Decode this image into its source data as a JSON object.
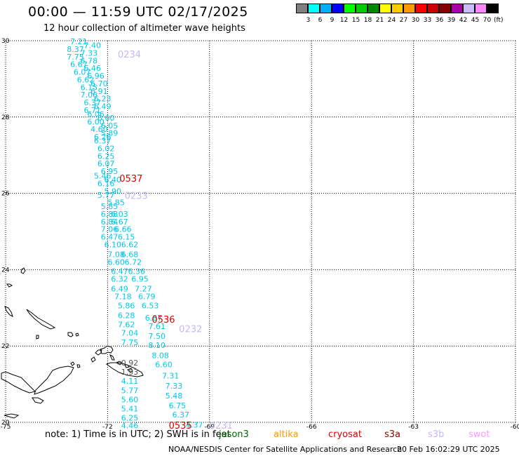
{
  "header": {
    "title": "00:00 — 11:59 UTC 02/17/2025",
    "subtitle": "12 hour collection of altimeter wave heights"
  },
  "legend": {
    "colors": [
      "#808080",
      "#00ffff",
      "#00b0ff",
      "#0000ff",
      "#00ff00",
      "#00cc00",
      "#008800",
      "#ffff00",
      "#ffcc00",
      "#ff9900",
      "#ff0000",
      "#cc0000",
      "#880000",
      "#aa00aa",
      "#ccbbff",
      "#ff88ff",
      "#000000"
    ],
    "labels": [
      "3",
      "6",
      "9",
      "12",
      "15",
      "18",
      "21",
      "24",
      "27",
      "30",
      "33",
      "36",
      "39",
      "42",
      "45",
      "70"
    ],
    "unit": "(ft)"
  },
  "axes": {
    "lon_labels": [
      "-75",
      "-72",
      "-69",
      "-66",
      "-63",
      "-60"
    ],
    "lat_labels": [
      "30",
      "28",
      "26",
      "24",
      "22",
      "20"
    ]
  },
  "pass_labels": [
    {
      "text": "0234",
      "lon": -71.7,
      "lat": 29.65,
      "color": "#c8b8f0"
    },
    {
      "text": "0537",
      "lon": -71.65,
      "lat": 26.4,
      "color": "#dd0000"
    },
    {
      "text": "0233",
      "lon": -71.5,
      "lat": 25.95,
      "color": "#c8b8f0"
    },
    {
      "text": "0536",
      "lon": -70.7,
      "lat": 22.7,
      "color": "#dd0000"
    },
    {
      "text": "0232",
      "lon": -69.9,
      "lat": 22.45,
      "color": "#c8b8f0"
    },
    {
      "text": "0535",
      "lon": -70.2,
      "lat": 19.93,
      "color": "#dd0000"
    },
    {
      "text": "0231",
      "lon": -69.0,
      "lat": 19.93,
      "color": "#c8b8f0"
    }
  ],
  "wave_heights": [
    {
      "v": "7.21",
      "lon": -73.1,
      "lat": 29.98,
      "c": "#00c8e8"
    },
    {
      "v": "7.40",
      "lon": -72.7,
      "lat": 29.88,
      "c": "#00c8e8"
    },
    {
      "v": "8.37",
      "lon": -73.2,
      "lat": 29.78,
      "c": "#00c8e8"
    },
    {
      "v": "7.33",
      "lon": -72.8,
      "lat": 29.68,
      "c": "#00c8e8"
    },
    {
      "v": "7.75",
      "lon": -73.2,
      "lat": 29.58,
      "c": "#00c8e8"
    },
    {
      "v": "6.78",
      "lon": -72.8,
      "lat": 29.48,
      "c": "#00c8e8"
    },
    {
      "v": "6.67",
      "lon": -73.1,
      "lat": 29.38,
      "c": "#00c8e8"
    },
    {
      "v": "6.46",
      "lon": -72.7,
      "lat": 29.28,
      "c": "#00c8e8"
    },
    {
      "v": "6.07",
      "lon": -73.0,
      "lat": 29.18,
      "c": "#00c8e8"
    },
    {
      "v": "6.96",
      "lon": -72.6,
      "lat": 29.08,
      "c": "#00c8e8"
    },
    {
      "v": "6.62",
      "lon": -72.9,
      "lat": 28.98,
      "c": "#00c8e8"
    },
    {
      "v": "6.70",
      "lon": -72.5,
      "lat": 28.88,
      "c": "#00c8e8"
    },
    {
      "v": "6.15",
      "lon": -72.8,
      "lat": 28.78,
      "c": "#00c8e8"
    },
    {
      "v": "6.91",
      "lon": -72.5,
      "lat": 28.68,
      "c": "#00c8e8"
    },
    {
      "v": "7.06",
      "lon": -72.8,
      "lat": 28.58,
      "c": "#00c8e8"
    },
    {
      "v": "6.23",
      "lon": -72.4,
      "lat": 28.48,
      "c": "#00c8e8"
    },
    {
      "v": "6.37",
      "lon": -72.7,
      "lat": 28.38,
      "c": "#00c8e8"
    },
    {
      "v": "6.49",
      "lon": -72.4,
      "lat": 28.28,
      "c": "#00c8e8"
    },
    {
      "v": "6.71",
      "lon": -72.7,
      "lat": 28.18,
      "c": "#00c8e8"
    },
    {
      "v": "6.06",
      "lon": -72.6,
      "lat": 28.08,
      "c": "#00c8e8"
    },
    {
      "v": "6.60",
      "lon": -72.3,
      "lat": 27.98,
      "c": "#00c8e8"
    },
    {
      "v": "6.00",
      "lon": -72.6,
      "lat": 27.88,
      "c": "#00c8e8"
    },
    {
      "v": "6.05",
      "lon": -72.2,
      "lat": 27.78,
      "c": "#00c8e8"
    },
    {
      "v": "4.60",
      "lon": -72.5,
      "lat": 27.68,
      "c": "#00c8e8"
    },
    {
      "v": "5.89",
      "lon": -72.2,
      "lat": 27.58,
      "c": "#00c8e8"
    },
    {
      "v": "6.26",
      "lon": -72.4,
      "lat": 27.48,
      "c": "#00c8e8"
    },
    {
      "v": "6.37",
      "lon": -72.4,
      "lat": 27.38,
      "c": "#00c8e8"
    },
    {
      "v": "6.02",
      "lon": -72.3,
      "lat": 27.18,
      "c": "#00c8e8"
    },
    {
      "v": "6.25",
      "lon": -72.3,
      "lat": 26.98,
      "c": "#00c8e8"
    },
    {
      "v": "6.07",
      "lon": -72.3,
      "lat": 26.78,
      "c": "#00c8e8"
    },
    {
      "v": "6.95",
      "lon": -72.2,
      "lat": 26.58,
      "c": "#00c8e8"
    },
    {
      "v": "5.46",
      "lon": -72.4,
      "lat": 26.46,
      "c": "#00c8e8"
    },
    {
      "v": "6.40",
      "lon": -72.1,
      "lat": 26.36,
      "c": "#00c8e8"
    },
    {
      "v": "6.16",
      "lon": -72.3,
      "lat": 26.26,
      "c": "#00c8e8"
    },
    {
      "v": "5.90",
      "lon": -72.1,
      "lat": 26.06,
      "c": "#00c8e8"
    },
    {
      "v": "5.77",
      "lon": -72.3,
      "lat": 25.96,
      "c": "#00c8e8"
    },
    {
      "v": "5.85",
      "lon": -72.0,
      "lat": 25.76,
      "c": "#00c8e8"
    },
    {
      "v": "5.85",
      "lon": -72.2,
      "lat": 25.66,
      "c": "#00c8e8"
    },
    {
      "v": "6.88",
      "lon": -72.2,
      "lat": 25.46,
      "c": "#00c8e8"
    },
    {
      "v": "6.03",
      "lon": -71.9,
      "lat": 25.46,
      "c": "#00c8e8"
    },
    {
      "v": "6.84",
      "lon": -72.2,
      "lat": 25.26,
      "c": "#00c8e8"
    },
    {
      "v": "6.67",
      "lon": -71.9,
      "lat": 25.26,
      "c": "#00c8e8"
    },
    {
      "v": "7.06",
      "lon": -72.2,
      "lat": 25.06,
      "c": "#00c8e8"
    },
    {
      "v": "6.66",
      "lon": -71.8,
      "lat": 25.06,
      "c": "#00c8e8"
    },
    {
      "v": "6.47",
      "lon": -72.2,
      "lat": 24.86,
      "c": "#00c8e8"
    },
    {
      "v": "6.15",
      "lon": -71.7,
      "lat": 24.86,
      "c": "#00c8e8"
    },
    {
      "v": "6.10",
      "lon": -72.1,
      "lat": 24.66,
      "c": "#00c8e8"
    },
    {
      "v": "6.62",
      "lon": -71.6,
      "lat": 24.66,
      "c": "#00c8e8"
    },
    {
      "v": "7.08",
      "lon": -72.0,
      "lat": 24.4,
      "c": "#00c8e8"
    },
    {
      "v": "6.68",
      "lon": -71.6,
      "lat": 24.4,
      "c": "#00c8e8"
    },
    {
      "v": "6.60",
      "lon": -72.0,
      "lat": 24.2,
      "c": "#00c8e8"
    },
    {
      "v": "6.72",
      "lon": -71.5,
      "lat": 24.2,
      "c": "#00c8e8"
    },
    {
      "v": "6.47",
      "lon": -71.9,
      "lat": 23.96,
      "c": "#00c8e8"
    },
    {
      "v": "6.36",
      "lon": -71.4,
      "lat": 23.96,
      "c": "#00c8e8"
    },
    {
      "v": "6.32",
      "lon": -71.9,
      "lat": 23.76,
      "c": "#00c8e8"
    },
    {
      "v": "6.95",
      "lon": -71.3,
      "lat": 23.76,
      "c": "#00c8e8"
    },
    {
      "v": "6.49",
      "lon": -71.9,
      "lat": 23.5,
      "c": "#00c8e8"
    },
    {
      "v": "7.27",
      "lon": -71.2,
      "lat": 23.5,
      "c": "#00c8e8"
    },
    {
      "v": "7.18",
      "lon": -71.8,
      "lat": 23.3,
      "c": "#00c8e8"
    },
    {
      "v": "6.79",
      "lon": -71.1,
      "lat": 23.3,
      "c": "#00c8e8"
    },
    {
      "v": "5.86",
      "lon": -71.7,
      "lat": 23.06,
      "c": "#00c8e8"
    },
    {
      "v": "6.53",
      "lon": -71.0,
      "lat": 23.06,
      "c": "#00c8e8"
    },
    {
      "v": "6.28",
      "lon": -71.7,
      "lat": 22.8,
      "c": "#00c8e8"
    },
    {
      "v": "6.87",
      "lon": -70.9,
      "lat": 22.74,
      "c": "#00c8e8"
    },
    {
      "v": "7.62",
      "lon": -71.7,
      "lat": 22.56,
      "c": "#00c8e8"
    },
    {
      "v": "7.61",
      "lon": -70.8,
      "lat": 22.52,
      "c": "#00c8e8"
    },
    {
      "v": "7.04",
      "lon": -71.6,
      "lat": 22.34,
      "c": "#00c8e8"
    },
    {
      "v": "7.50",
      "lon": -70.8,
      "lat": 22.26,
      "c": "#00c8e8"
    },
    {
      "v": "7.75",
      "lon": -71.6,
      "lat": 22.1,
      "c": "#00c8e8"
    },
    {
      "v": "8.10",
      "lon": -70.8,
      "lat": 22.02,
      "c": "#00c8e8"
    },
    {
      "v": "0.92",
      "lon": -71.6,
      "lat": 21.56,
      "c": "#555555"
    },
    {
      "v": "8.08",
      "lon": -70.7,
      "lat": 21.76,
      "c": "#00c8e8"
    },
    {
      "v": "1.53",
      "lon": -71.6,
      "lat": 21.32,
      "c": "#555555"
    },
    {
      "v": "6.60",
      "lon": -70.6,
      "lat": 21.52,
      "c": "#00c8e8"
    },
    {
      "v": "4.11",
      "lon": -71.6,
      "lat": 21.08,
      "c": "#00c8e8"
    },
    {
      "v": "7.31",
      "lon": -70.4,
      "lat": 21.22,
      "c": "#00c8e8"
    },
    {
      "v": "5.77",
      "lon": -71.6,
      "lat": 20.84,
      "c": "#00c8e8"
    },
    {
      "v": "7.33",
      "lon": -70.3,
      "lat": 20.96,
      "c": "#00c8e8"
    },
    {
      "v": "5.60",
      "lon": -71.6,
      "lat": 20.6,
      "c": "#00c8e8"
    },
    {
      "v": "5.48",
      "lon": -70.3,
      "lat": 20.7,
      "c": "#00c8e8"
    },
    {
      "v": "5.41",
      "lon": -71.6,
      "lat": 20.36,
      "c": "#00c8e8"
    },
    {
      "v": "6.75",
      "lon": -70.2,
      "lat": 20.44,
      "c": "#00c8e8"
    },
    {
      "v": "6.25",
      "lon": -71.6,
      "lat": 20.12,
      "c": "#00c8e8"
    },
    {
      "v": "6.37",
      "lon": -70.1,
      "lat": 20.2,
      "c": "#00c8e8"
    },
    {
      "v": "4.46",
      "lon": -71.6,
      "lat": 19.92,
      "c": "#00c8e8"
    },
    {
      "v": "4.37",
      "lon": -69.7,
      "lat": 19.94,
      "c": "#00c8e8"
    }
  ],
  "footer": {
    "note": "note: 1) Time is in UTC; 2) SWH is in feet",
    "satellites": [
      {
        "name": "jason3",
        "color": "#006600"
      },
      {
        "name": "altika",
        "color": "#ff9900"
      },
      {
        "name": "cryosat",
        "color": "#dd0000"
      },
      {
        "name": "s3a",
        "color": "#880000"
      },
      {
        "name": "s3b",
        "color": "#c8b8f0"
      },
      {
        "name": "swot",
        "color": "#ff99ff"
      }
    ],
    "credit": "NOAA/NESDIS Center for Satellite Applications and Research",
    "timestamp": "20 Feb 16:02:29 UTC 2025"
  }
}
